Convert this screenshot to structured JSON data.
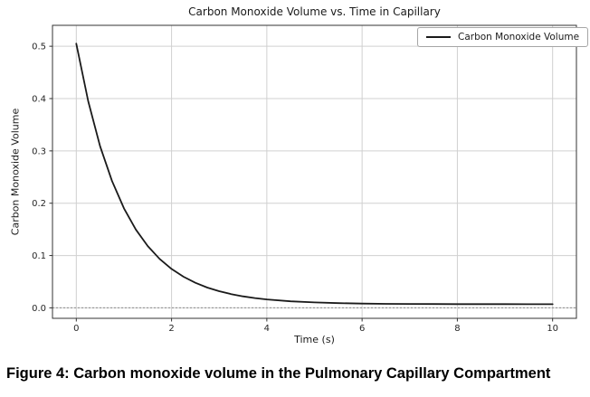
{
  "figure_caption": "Figure 4: Carbon monoxide volume in the Pulmonary Capillary Compartment",
  "chart_data": {
    "type": "line",
    "title": "Carbon Monoxide Volume vs. Time in Capillary",
    "xlabel": "Time (s)",
    "ylabel": "Carbon Monoxide Volume",
    "xlim": [
      -0.5,
      10.5
    ],
    "ylim": [
      -0.02,
      0.54
    ],
    "xticks": [
      0,
      2,
      4,
      6,
      8,
      10
    ],
    "xtick_labels": [
      "0",
      "2",
      "4",
      "6",
      "8",
      "10"
    ],
    "yticks": [
      0.0,
      0.1,
      0.2,
      0.3,
      0.4,
      0.5
    ],
    "ytick_labels": [
      "0.0",
      "0.1",
      "0.2",
      "0.3",
      "0.4",
      "0.5"
    ],
    "grid": true,
    "legend": {
      "position": "upper right",
      "label": "Carbon Monoxide Volume"
    },
    "reference_line": {
      "y": 0.0,
      "style": "dotted",
      "color": "#8c8c8c"
    },
    "series": [
      {
        "name": "Carbon Monoxide Volume",
        "color": "#1a1a1a",
        "x": [
          0,
          0.25,
          0.5,
          0.75,
          1,
          1.25,
          1.5,
          1.75,
          2,
          2.25,
          2.5,
          2.75,
          3,
          3.25,
          3.5,
          3.75,
          4,
          4.5,
          5,
          5.5,
          6,
          6.5,
          7,
          7.5,
          8,
          8.5,
          9,
          9.5,
          10
        ],
        "y": [
          0.505,
          0.3948,
          0.309,
          0.2423,
          0.1902,
          0.1497,
          0.1181,
          0.0935,
          0.0744,
          0.0595,
          0.0479,
          0.0388,
          0.0318,
          0.0263,
          0.022,
          0.0187,
          0.0161,
          0.0125,
          0.0104,
          0.009,
          0.0082,
          0.0077,
          0.0075,
          0.0073,
          0.0072,
          0.0071,
          0.0071,
          0.007,
          0.007
        ]
      }
    ],
    "colors": {
      "line": "#1a1a1a",
      "grid": "#d0d0d0",
      "spine": "#333333",
      "tick_text": "#262626",
      "legend_border": "#a6a6a6",
      "background": "#ffffff"
    }
  }
}
